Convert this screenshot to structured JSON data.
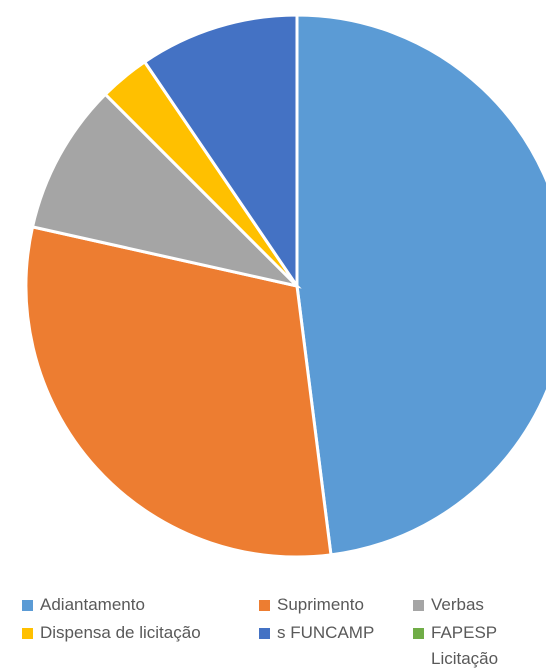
{
  "chart_data": {
    "type": "pie",
    "categories": [
      "Adiantamento",
      "Suprimento",
      "Verbas",
      "Dispensa de licitação",
      "s FUNCAMP",
      "FAPESP Licitação"
    ],
    "values": [
      48,
      30.5,
      9,
      3,
      9.5,
      0
    ],
    "colors": [
      "#5b9bd5",
      "#ed7d31",
      "#a5a5a5",
      "#ffc000",
      "#4472c4",
      "#70ad47"
    ],
    "legend": "bottom"
  }
}
